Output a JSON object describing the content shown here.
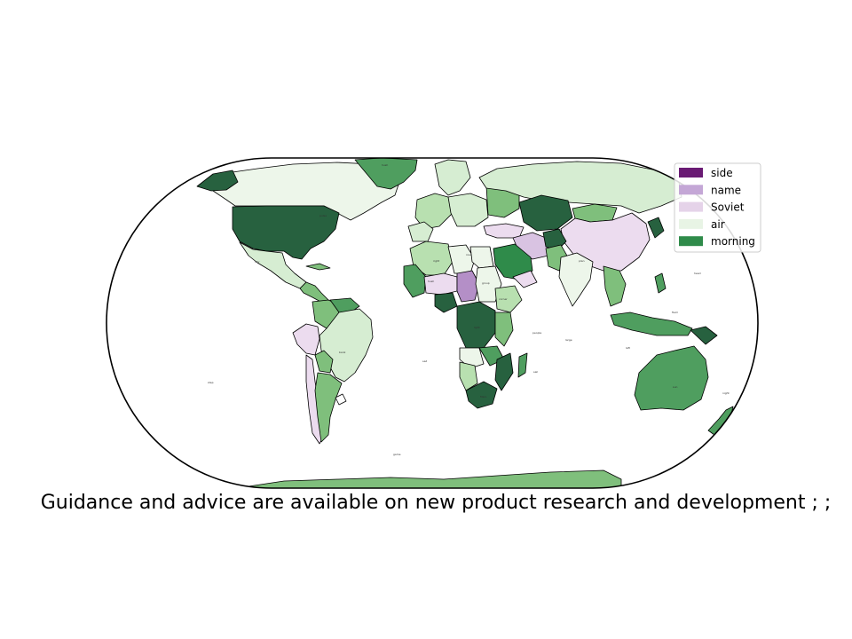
{
  "caption": "Guidance and advice are available on new product research and development ; ;",
  "legend": {
    "placement": "top-right",
    "entries": [
      {
        "label": "side",
        "color": "#6a1b74"
      },
      {
        "label": "name",
        "color": "#c4a7d6"
      },
      {
        "label": "Soviet",
        "color": "#e5d3e9"
      },
      {
        "label": "air",
        "color": "#e8f4e5"
      },
      {
        "label": "morning",
        "color": "#2f8b4a"
      }
    ]
  },
  "palette": {
    "dark_green": "#27613f",
    "green": "#4f9e5f",
    "mid_green": "#7fbf7c",
    "light_green": "#b8e0b0",
    "pale_green": "#d6edd2",
    "very_pale": "#edf6ea",
    "pale_purple": "#ecdcef",
    "light_purple": "#d9c3e2",
    "purple": "#b48fc7",
    "ocean": "#ffffff"
  },
  "region_labels": [
    "hush",
    "pulse",
    "city",
    "right",
    "rose",
    "hush",
    "corner",
    "group",
    "light",
    "bank",
    "plan",
    "people",
    "large",
    "sad",
    "field",
    "left",
    "head",
    "sail",
    "sun",
    "Mars",
    "night",
    "game",
    "step"
  ]
}
